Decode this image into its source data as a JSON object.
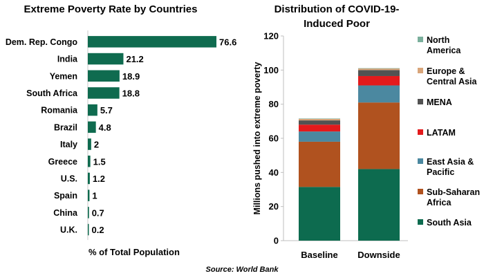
{
  "chart_data": [
    {
      "type": "bar",
      "orientation": "horizontal",
      "title": "Extreme Poverty Rate by Countries",
      "xlabel": "% of Total Population",
      "ylabel": "",
      "categories": [
        "Dem. Rep. Congo",
        "India",
        "Yemen",
        "South Africa",
        "Romania",
        "Brazil",
        "Italy",
        "Greece",
        "U.S.",
        "Spain",
        "China",
        "U.K."
      ],
      "values": [
        76.6,
        21.2,
        18.9,
        18.8,
        5.7,
        4.8,
        2,
        1.5,
        1.2,
        1,
        0.7,
        0.2
      ],
      "value_labels": [
        "76.6",
        "21.2",
        "18.9",
        "18.8",
        "5.7",
        "4.8",
        "2",
        "1.5",
        "1.2",
        "1",
        "0.7",
        "0.2"
      ],
      "xlim": [
        0,
        80
      ],
      "grid": false,
      "color": "#0f6b4f"
    },
    {
      "type": "bar",
      "stacked": true,
      "title": "Distribution of COVID-19-Induced Poor",
      "xlabel": "",
      "ylabel": "Millions pushed into extreme poverty",
      "categories": [
        "Baseline",
        "Downside"
      ],
      "ylim": [
        0,
        120
      ],
      "yticks": [
        "0",
        "20",
        "40",
        "60",
        "80",
        "100",
        "120"
      ],
      "legend_position": "right",
      "grid": false,
      "series": [
        {
          "name": "South Asia",
          "color": "#0d6b4f",
          "values": [
            31.5,
            42
          ]
        },
        {
          "name": "Sub-Saharan Africa",
          "color": "#b0521f",
          "values": [
            26.5,
            39
          ]
        },
        {
          "name": "East Asia & Pacific",
          "color": "#4b88a0",
          "values": [
            6,
            10
          ]
        },
        {
          "name": "LATAM",
          "color": "#e31a1c",
          "values": [
            4,
            5.5
          ]
        },
        {
          "name": "MENA",
          "color": "#525252",
          "values": [
            2.5,
            3.5
          ]
        },
        {
          "name": "Europe & Central Asia",
          "color": "#d9a57a",
          "values": [
            1,
            1
          ]
        },
        {
          "name": "North America",
          "color": "#7aaf9c",
          "values": [
            0.1,
            0.1
          ]
        }
      ]
    }
  ],
  "source": "Source: World Bank"
}
